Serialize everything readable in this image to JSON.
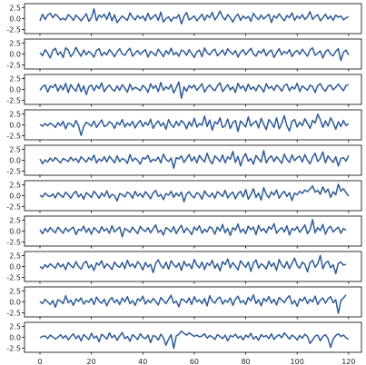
{
  "chart_data": {
    "type": "line",
    "title": "",
    "xlabel": "",
    "ylabel": "",
    "layout": "10 vertically stacked panels sharing x axis",
    "xlim": [
      0,
      120
    ],
    "ylim": [
      -2.5,
      2.5
    ],
    "x_ticks": [
      "0",
      "20",
      "40",
      "60",
      "80",
      "100",
      "120"
    ],
    "y_ticks": [
      "2.5",
      "0.0",
      "-2.5"
    ],
    "x_tick_values": [
      0,
      20,
      40,
      60,
      80,
      100,
      120
    ],
    "y_tick_values": [
      2.5,
      0.0,
      -2.5
    ],
    "grid": false,
    "legend": "none",
    "line_color": "#2f5c96",
    "panels": [
      {
        "values": [
          -0.5,
          1.0,
          -0.2,
          0.8,
          1.2,
          0.2,
          1.0,
          0.5,
          -0.3,
          0.1,
          -0.3,
          0.9,
          0.4,
          -0.4,
          0.8,
          0.2,
          -0.5,
          0.3,
          1.1,
          -0.6,
          0.2,
          2.2,
          -0.5,
          0.8,
          0.3,
          1.0,
          -0.2,
          1.4,
          -0.5,
          0.9,
          -0.9,
          -0.1,
          0.6,
          0.1,
          -0.4,
          1.3,
          0.3,
          -0.3,
          0.7,
          0.0,
          0.6,
          -0.5,
          1.2,
          -0.2,
          0.4,
          0.9,
          -0.4,
          1.5,
          -0.8,
          0.0,
          0.4,
          -0.6,
          0.3,
          0.1,
          0.9,
          -1.2,
          0.5,
          1.4,
          -0.3,
          0.1,
          0.6,
          -0.5,
          0.2,
          1.0,
          -0.4,
          0.8,
          0.2,
          1.4,
          -0.3,
          0.5,
          1.7,
          0.4,
          -0.3,
          0.9,
          0.2,
          -0.8,
          0.4,
          1.0,
          -0.4,
          0.6,
          0.0,
          0.5,
          -0.6,
          1.2,
          0.3,
          -0.2,
          0.8,
          -0.1,
          0.5,
          1.0,
          -0.9,
          0.7,
          0.1,
          1.1,
          0.2,
          -0.5,
          0.7,
          0.2,
          1.3,
          -0.4,
          0.6,
          0.0,
          0.9,
          -0.2,
          0.4,
          1.6,
          -0.2,
          0.5,
          0.9,
          -0.5,
          0.2,
          1.0,
          -0.1,
          0.6,
          -0.4,
          0.8,
          0.3,
          0.6,
          -0.3,
          0.2,
          0.4
        ]
      },
      {
        "values": [
          0.3,
          -0.4,
          1.0,
          0.2,
          -0.9,
          0.8,
          1.3,
          -0.2,
          0.5,
          -0.8,
          1.4,
          0.9,
          -0.6,
          0.2,
          1.5,
          0.4,
          -0.5,
          0.9,
          -0.2,
          0.6,
          0.1,
          -0.7,
          0.8,
          1.2,
          -0.4,
          0.4,
          -0.2,
          1.0,
          0.3,
          -0.6,
          0.5,
          1.2,
          0.0,
          -0.3,
          0.7,
          1.3,
          -0.5,
          0.2,
          0.8,
          -0.1,
          0.5,
          1.0,
          -0.7,
          0.6,
          0.2,
          -0.4,
          1.1,
          0.3,
          -0.6,
          0.8,
          0.0,
          1.3,
          -0.2,
          0.4,
          -0.5,
          0.9,
          0.6,
          -0.3,
          1.0,
          0.1,
          -0.8,
          0.5,
          0.9,
          -0.6,
          1.4,
          0.3,
          -0.2,
          0.7,
          1.1,
          -0.4,
          0.2,
          0.9,
          -0.3,
          1.2,
          0.5,
          -0.1,
          0.8,
          -0.7,
          0.4,
          1.0,
          -0.2,
          0.6,
          1.3,
          0.0,
          -0.5,
          0.7,
          0.2,
          1.1,
          -0.4,
          0.5,
          0.9,
          -0.8,
          0.3,
          1.2,
          -0.2,
          0.6,
          0.1,
          1.0,
          -0.6,
          0.4,
          0.8,
          -0.1,
          1.1,
          0.3,
          -0.5,
          0.9,
          1.4,
          -0.3,
          0.2,
          0.7,
          -0.9,
          0.5,
          1.0,
          0.0,
          -0.4,
          0.6,
          1.2,
          -1.5,
          0.4,
          0.9,
          -0.2
        ]
      },
      {
        "values": [
          -0.2,
          0.6,
          1.0,
          -0.6,
          0.8,
          0.4,
          1.2,
          -0.4,
          0.9,
          -0.1,
          1.4,
          -0.7,
          1.1,
          0.2,
          -0.4,
          1.3,
          -0.5,
          0.8,
          -1.2,
          0.6,
          1.0,
          -0.3,
          0.9,
          0.2,
          1.5,
          -0.5,
          0.4,
          1.0,
          0.1,
          -0.4,
          0.8,
          -0.2,
          1.1,
          0.3,
          -0.6,
          1.2,
          -0.1,
          0.5,
          0.2,
          -0.3,
          0.9,
          0.4,
          -0.7,
          1.3,
          0.2,
          0.9,
          -0.5,
          1.6,
          -0.2,
          0.6,
          0.1,
          1.1,
          -0.8,
          0.4,
          1.7,
          -2.0,
          0.6,
          -0.4,
          0.9,
          0.3,
          1.0,
          -0.2,
          0.5,
          1.3,
          -0.6,
          0.4,
          1.0,
          0.2,
          -0.3,
          0.8,
          1.5,
          -0.5,
          0.3,
          1.1,
          -0.1,
          0.6,
          -0.7,
          1.4,
          0.2,
          0.8,
          -0.4,
          1.2,
          0.0,
          0.6,
          -0.3,
          1.0,
          0.4,
          -0.6,
          1.3,
          0.2,
          0.7,
          -0.2,
          1.0,
          0.5,
          -0.4,
          0.9,
          1.2,
          -0.3,
          0.6,
          0.1,
          1.4,
          -0.5,
          0.8,
          0.3,
          -0.2,
          1.0,
          0.6,
          -0.7,
          0.9,
          1.3,
          0.2,
          -0.4,
          0.7,
          1.0,
          -0.1,
          0.5,
          1.2,
          0.4,
          -0.3,
          0.9,
          1.1
        ]
      },
      {
        "values": [
          0.1,
          -0.3,
          0.3,
          -0.2,
          0.4,
          0.0,
          -0.6,
          0.5,
          -0.2,
          0.8,
          -0.9,
          0.4,
          0.2,
          -0.5,
          1.0,
          -0.2,
          -2.4,
          -0.4,
          0.6,
          0.2,
          -0.3,
          0.9,
          -0.6,
          0.3,
          1.1,
          -0.4,
          -0.1,
          0.7,
          0.3,
          -0.8,
          0.6,
          0.0,
          1.2,
          -0.5,
          0.4,
          -0.2,
          0.8,
          -0.7,
          0.3,
          1.0,
          -0.4,
          0.6,
          -0.1,
          1.3,
          -0.8,
          0.2,
          0.9,
          -0.3,
          0.5,
          -1.0,
          1.2,
          0.0,
          -0.6,
          0.8,
          -0.2,
          1.0,
          0.4,
          -0.9,
          0.7,
          -0.3,
          1.5,
          -0.5,
          0.3,
          -0.1,
          2.0,
          -0.4,
          1.1,
          -1.2,
          0.7,
          0.2,
          1.6,
          -0.6,
          -0.2,
          1.3,
          -0.8,
          0.5,
          1.0,
          -1.5,
          0.9,
          0.2,
          -0.5,
          1.8,
          -0.3,
          0.4,
          0.9,
          -0.7,
          1.5,
          0.1,
          -1.1,
          1.2,
          0.5,
          -0.6,
          1.6,
          -0.9,
          0.3,
          2.1,
          -0.2,
          -1.4,
          0.8,
          1.2,
          -0.5,
          0.6,
          -0.2,
          1.4,
          0.3,
          -0.8,
          1.0,
          0.4,
          2.4,
          1.2,
          -0.6,
          0.9,
          -0.3,
          1.6,
          0.5,
          -1.0,
          0.7,
          -0.4,
          1.0,
          -0.2,
          0.3
        ]
      },
      {
        "values": [
          0.3,
          -0.8,
          0.1,
          -0.4,
          0.5,
          -0.2,
          0.6,
          0.0,
          -0.6,
          0.4,
          0.1,
          -0.3,
          0.7,
          -0.1,
          0.4,
          -0.5,
          0.8,
          0.2,
          -0.4,
          0.6,
          0.0,
          1.2,
          -0.6,
          0.3,
          -0.2,
          0.8,
          -0.4,
          0.9,
          0.2,
          -0.6,
          1.0,
          -0.3,
          0.4,
          0.1,
          -0.7,
          1.3,
          -0.2,
          0.5,
          0.0,
          -0.9,
          0.6,
          0.3,
          1.1,
          -0.4,
          0.2,
          -0.1,
          0.7,
          -0.6,
          1.4,
          0.2,
          -0.3,
          0.5,
          -1.8,
          0.6,
          0.3,
          1.0,
          -0.5,
          0.4,
          1.3,
          -0.2,
          0.8,
          -0.6,
          1.1,
          0.3,
          -0.4,
          1.6,
          0.0,
          -0.8,
          1.0,
          0.4,
          -0.3,
          1.2,
          -0.6,
          0.8,
          0.2,
          2.0,
          -0.5,
          0.9,
          -1.3,
          0.6,
          1.5,
          -0.2,
          0.4,
          -0.9,
          1.1,
          0.3,
          -0.4,
          2.2,
          -0.6,
          0.5,
          1.0,
          -0.3,
          0.8,
          0.1,
          -0.7,
          1.4,
          0.2,
          -0.5,
          1.2,
          -0.1,
          0.6,
          0.9,
          -0.4,
          1.3,
          0.0,
          -0.8,
          0.7,
          1.6,
          -0.3,
          0.4,
          1.9,
          -0.6,
          1.0,
          0.2,
          -0.5,
          0.8,
          -1.3,
          0.4,
          0.6,
          -0.2,
          1.1
        ]
      },
      {
        "values": [
          0.1,
          -0.3,
          0.6,
          0.0,
          -0.2,
          0.4,
          -0.5,
          0.7,
          0.1,
          -0.4,
          0.8,
          0.2,
          -0.6,
          0.5,
          1.0,
          -0.3,
          0.4,
          -0.8,
          0.7,
          0.2,
          -0.4,
          1.0,
          0.3,
          -0.6,
          0.6,
          -0.2,
          1.1,
          -0.5,
          0.3,
          0.0,
          -1.2,
          0.5,
          0.2,
          -0.3,
          0.8,
          0.4,
          -0.6,
          1.0,
          -0.1,
          0.5,
          -0.4,
          0.9,
          0.2,
          -0.7,
          0.6,
          1.2,
          -0.2,
          0.3,
          -0.9,
          0.5,
          0.1,
          1.0,
          -0.4,
          0.6,
          -0.1,
          0.8,
          -1.4,
          0.4,
          0.9,
          0.0,
          -0.5,
          0.7,
          0.3,
          -0.8,
          1.1,
          0.2,
          -0.3,
          0.6,
          -0.6,
          0.9,
          0.4,
          -0.2,
          1.2,
          -0.5,
          0.3,
          0.8,
          -0.7,
          0.5,
          1.0,
          -0.3,
          1.4,
          -0.8,
          0.2,
          1.6,
          -0.4,
          0.6,
          -1.0,
          1.8,
          0.3,
          -0.5,
          0.9,
          0.1,
          1.3,
          -0.6,
          0.4,
          1.0,
          -0.2,
          0.7,
          -1.1,
          0.6,
          0.2,
          1.0,
          0.5,
          1.3,
          0.9,
          1.5,
          2.2,
          0.8,
          1.2,
          0.3,
          2.0,
          0.7,
          1.5,
          -0.4,
          0.9,
          0.2,
          2.6,
          1.0,
          1.6,
          0.7,
          -0.1
        ]
      },
      {
        "values": [
          0.3,
          -0.6,
          0.6,
          -0.2,
          0.8,
          0.1,
          -0.4,
          0.9,
          0.2,
          -0.5,
          0.7,
          -0.1,
          0.5,
          0.9,
          -0.8,
          0.4,
          0.1,
          1.1,
          -0.3,
          0.6,
          -0.7,
          0.8,
          0.2,
          -0.4,
          1.0,
          0.0,
          0.6,
          -0.5,
          1.2,
          -0.2,
          0.4,
          0.9,
          -1.3,
          0.6,
          0.2,
          -0.3,
          0.9,
          0.1,
          -0.6,
          1.1,
          0.3,
          -0.1,
          0.8,
          -0.4,
          0.5,
          1.4,
          -0.3,
          0.2,
          -0.9,
          0.8,
          0.4,
          -0.2,
          1.0,
          -0.6,
          0.5,
          1.3,
          -0.4,
          0.7,
          0.1,
          -0.8,
          0.9,
          0.2,
          1.2,
          -0.5,
          0.4,
          -0.2,
          1.0,
          0.6,
          -0.7,
          0.9,
          0.0,
          1.5,
          -0.4,
          0.6,
          -1.0,
          0.8,
          0.2,
          1.6,
          -0.3,
          0.5,
          -0.6,
          1.1,
          0.3,
          0.9,
          -0.8,
          1.3,
          0.0,
          0.6,
          -0.4,
          1.0,
          0.4,
          1.7,
          -0.5,
          0.3,
          0.8,
          -0.2,
          1.2,
          -0.9,
          0.6,
          0.2,
          1.0,
          -0.3,
          0.5,
          1.4,
          -0.6,
          0.3,
          2.6,
          -0.4,
          0.8,
          0.1,
          1.5,
          -0.7,
          0.6,
          1.1,
          -0.2,
          0.4,
          0.9,
          -0.5,
          0.6,
          0.2
        ]
      },
      {
        "values": [
          0.0,
          -0.5,
          0.4,
          -0.2,
          0.6,
          0.1,
          -0.4,
          0.8,
          -0.1,
          0.5,
          -0.7,
          0.9,
          0.2,
          -0.3,
          1.1,
          0.0,
          -0.6,
          0.7,
          1.2,
          -0.3,
          0.4,
          -0.9,
          0.8,
          0.3,
          1.3,
          -0.4,
          0.6,
          0.1,
          -0.7,
          1.0,
          0.2,
          -0.2,
          0.9,
          -0.5,
          1.4,
          0.0,
          0.6,
          -0.3,
          1.1,
          0.4,
          -0.8,
          0.9,
          -0.1,
          0.5,
          -1.4,
          0.7,
          1.5,
          0.2,
          -0.4,
          1.0,
          -0.6,
          1.3,
          0.4,
          -0.2,
          0.8,
          -0.9,
          1.2,
          0.1,
          0.6,
          -0.5,
          1.6,
          0.3,
          -0.3,
          1.0,
          -0.7,
          0.8,
          0.2,
          1.4,
          -0.4,
          0.6,
          -1.0,
          1.1,
          0.4,
          1.7,
          -0.3,
          0.9,
          0.1,
          -0.8,
          1.3,
          0.5,
          -0.2,
          1.0,
          -1.1,
          0.7,
          1.5,
          -0.4,
          0.6,
          0.2,
          -0.6,
          1.2,
          0.0,
          0.8,
          -0.9,
          1.6,
          0.3,
          -0.3,
          1.1,
          -0.5,
          0.7,
          1.9,
          0.2,
          -0.4,
          1.0,
          0.5,
          -1.2,
          0.9,
          1.4,
          -0.2,
          0.6,
          2.5,
          -0.5,
          0.8,
          1.2,
          -0.3,
          0.4,
          -1.6,
          0.7,
          1.0,
          0.3,
          0.5
        ]
      },
      {
        "values": [
          0.1,
          -0.4,
          0.6,
          0.0,
          -0.6,
          0.3,
          -1.2,
          0.5,
          0.2,
          -0.4,
          1.4,
          -0.2,
          0.4,
          -0.8,
          0.7,
          0.1,
          0.9,
          -0.5,
          0.3,
          -0.1,
          0.8,
          -0.6,
          1.1,
          0.2,
          -0.3,
          0.6,
          -0.9,
          0.4,
          1.0,
          -0.2,
          0.5,
          -0.6,
          0.9,
          0.0,
          1.2,
          -0.4,
          0.3,
          -0.8,
          0.7,
          0.2,
          1.3,
          -0.5,
          0.4,
          -0.2,
          0.8,
          0.1,
          -0.7,
          1.0,
          0.3,
          -0.4,
          0.6,
          1.5,
          -0.3,
          0.2,
          -1.1,
          0.7,
          0.4,
          -0.2,
          0.9,
          -0.6,
          1.2,
          0.0,
          0.5,
          -0.4,
          0.8,
          -0.9,
          1.4,
          0.2,
          -0.3,
          0.7,
          1.1,
          -0.5,
          0.4,
          -0.1,
          0.9,
          -0.8,
          0.6,
          1.3,
          -0.2,
          0.3,
          -0.6,
          1.0,
          0.2,
          1.6,
          -0.4,
          0.5,
          -0.9,
          0.8,
          0.1,
          1.2,
          -0.3,
          0.6,
          -0.7,
          1.0,
          0.4,
          -0.2,
          0.8,
          1.4,
          -0.5,
          0.3,
          -1.0,
          0.7,
          0.2,
          1.1,
          -0.4,
          0.6,
          0.0,
          1.3,
          -0.6,
          0.4,
          0.9,
          -0.3,
          0.7,
          1.2,
          -0.2,
          0.5,
          -2.6,
          0.3,
          0.9,
          1.6
        ]
      },
      {
        "values": [
          -0.1,
          0.2,
          0.3,
          -0.3,
          0.5,
          0.1,
          -0.4,
          0.0,
          0.6,
          -0.2,
          0.4,
          -0.6,
          0.2,
          0.8,
          -0.3,
          0.4,
          -0.8,
          0.6,
          0.1,
          -0.5,
          0.9,
          -0.2,
          0.3,
          -1.0,
          0.7,
          0.2,
          -0.4,
          1.0,
          -0.1,
          0.5,
          -0.7,
          0.3,
          1.1,
          -0.3,
          0.2,
          -0.9,
          0.6,
          0.1,
          -0.5,
          0.8,
          0.0,
          -0.3,
          0.5,
          -1.2,
          0.4,
          0.2,
          -0.6,
          0.7,
          -0.1,
          -1.8,
          -0.4,
          0.6,
          -2.5,
          0.3,
          0.7,
          1.4,
          0.9,
          0.5,
          1.0,
          0.6,
          0.2,
          0.5,
          0.1,
          0.3,
          0.8,
          -0.2,
          0.4,
          0.1,
          -0.5,
          0.6,
          0.2,
          -0.3,
          0.5,
          -0.8,
          0.4,
          0.1,
          0.7,
          -0.2,
          0.3,
          -0.6,
          0.5,
          0.0,
          0.9,
          -0.4,
          0.2,
          -0.7,
          0.6,
          0.1,
          0.4,
          -0.3,
          0.8,
          -0.5,
          0.2,
          0.6,
          -0.1,
          1.0,
          0.3,
          -0.4,
          0.5,
          0.1,
          -0.6,
          0.4,
          -0.2,
          0.7,
          0.2,
          -1.4,
          -0.6,
          0.3,
          0.5,
          -0.8,
          0.2,
          0.6,
          -0.3,
          -2.3,
          -0.4,
          0.4,
          0.8,
          0.2,
          0.5,
          -0.1,
          -0.5
        ]
      }
    ]
  }
}
